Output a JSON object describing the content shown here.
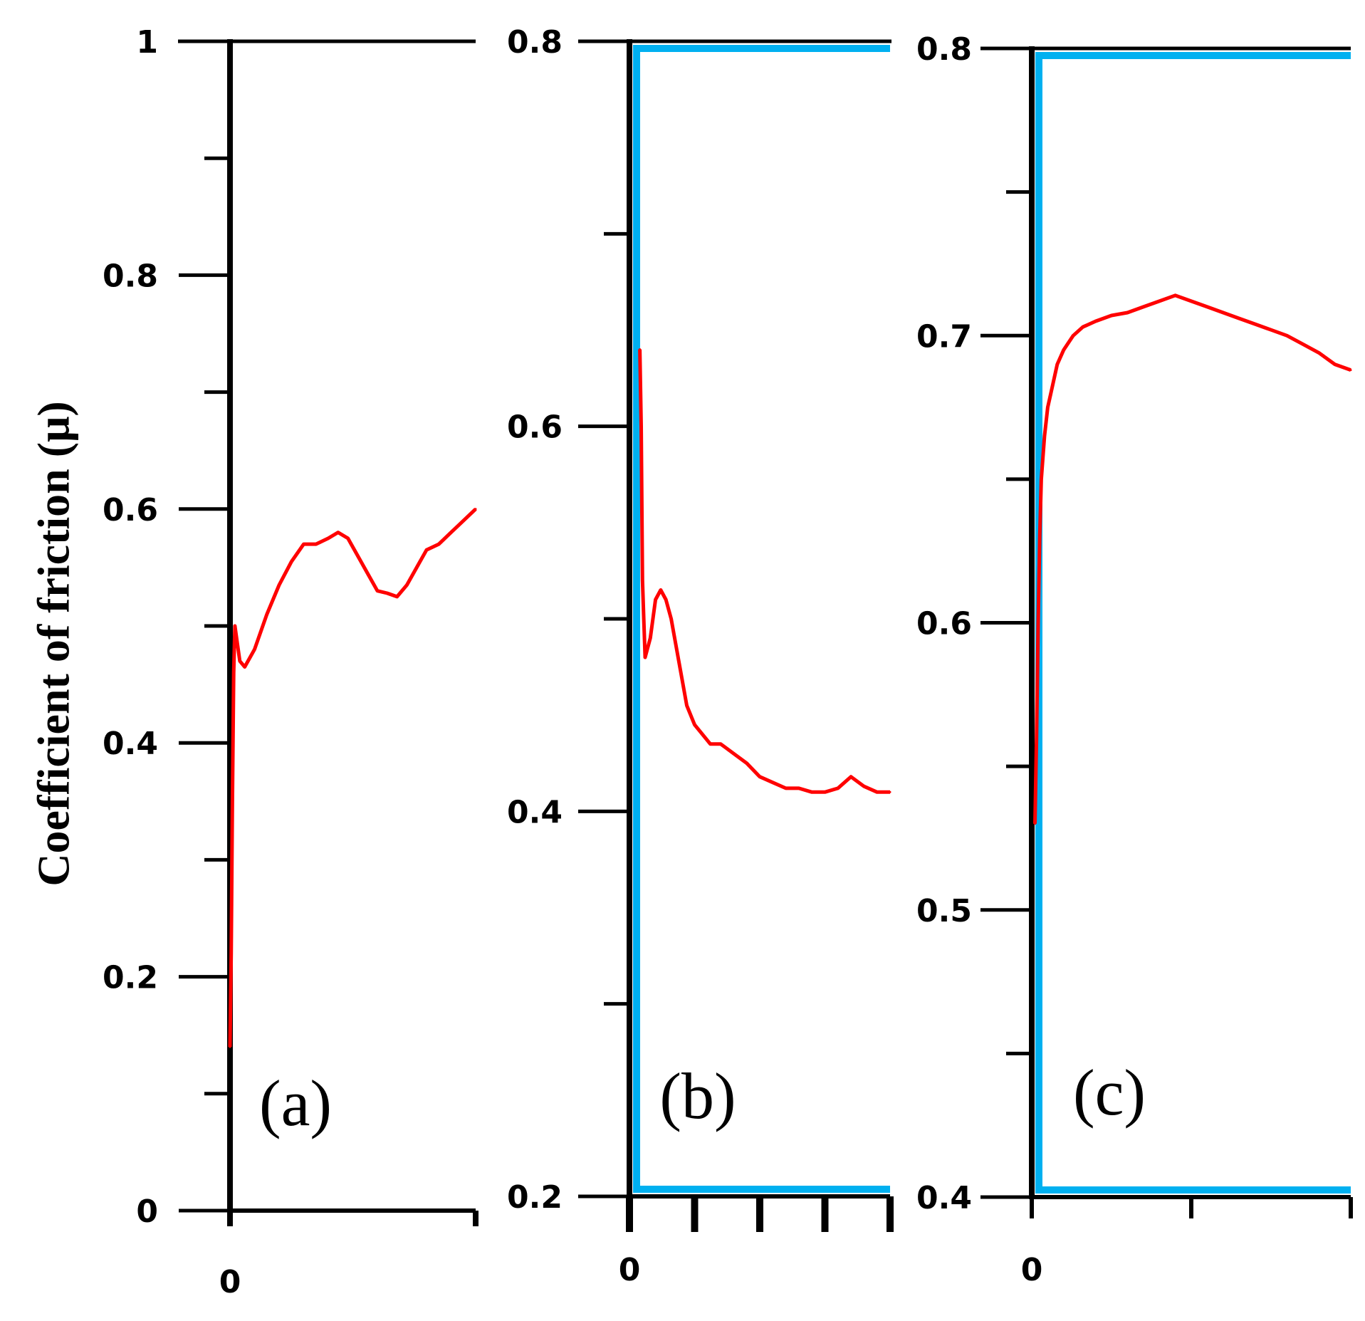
{
  "chart_data": {
    "type": "line",
    "ylabel": "Coefficient of friction (μ)",
    "colors": {
      "friction": "#ff0000",
      "frame_cyan": "#00b0f0",
      "axis": "#000000"
    },
    "panels": [
      {
        "label": "(a)",
        "ylim": [
          0,
          1
        ],
        "yticks": [
          0,
          0.2,
          0.4,
          0.6,
          0.8,
          1
        ],
        "ytick_labels": [
          "0",
          "0.2",
          "0.4",
          "0.6",
          "0.8",
          "1"
        ],
        "minor_yticks": [
          0.1,
          0.3,
          0.5,
          0.7,
          0.9
        ],
        "xlim": [
          0,
          1
        ],
        "x_ticks": [
          0,
          1
        ],
        "x_tick_label": "0",
        "frame_color": "black",
        "series": [
          {
            "name": "friction",
            "x": [
              0,
              0.005,
              0.01,
              0.015,
              0.02,
              0.04,
              0.06,
              0.1,
              0.15,
              0.2,
              0.25,
              0.3,
              0.35,
              0.4,
              0.44,
              0.48,
              0.52,
              0.56,
              0.6,
              0.64,
              0.68,
              0.72,
              0.76,
              0.8,
              0.85,
              0.9,
              0.95,
              1.0
            ],
            "y": [
              0.14,
              0.22,
              0.35,
              0.46,
              0.5,
              0.47,
              0.465,
              0.48,
              0.51,
              0.535,
              0.555,
              0.57,
              0.57,
              0.575,
              0.58,
              0.575,
              0.56,
              0.545,
              0.53,
              0.528,
              0.525,
              0.535,
              0.55,
              0.565,
              0.57,
              0.58,
              0.59,
              0.6
            ]
          }
        ]
      },
      {
        "label": "(b)",
        "ylim": [
          0.2,
          0.8
        ],
        "yticks": [
          0.2,
          0.4,
          0.6,
          0.8
        ],
        "ytick_labels": [
          "0.2",
          "0.4",
          "0.6",
          "0.8"
        ],
        "minor_yticks": [
          0.3,
          0.5,
          0.7
        ],
        "xlim": [
          0,
          1
        ],
        "x_ticks": [
          0,
          0.25,
          0.5,
          0.75,
          1
        ],
        "x_tick_label": "0",
        "frame_color": "cyan",
        "series": [
          {
            "name": "friction",
            "x": [
              0.04,
              0.045,
              0.05,
              0.055,
              0.06,
              0.08,
              0.1,
              0.12,
              0.14,
              0.16,
              0.18,
              0.2,
              0.22,
              0.25,
              0.28,
              0.31,
              0.35,
              0.4,
              0.45,
              0.5,
              0.55,
              0.6,
              0.65,
              0.7,
              0.75,
              0.8,
              0.85,
              0.9,
              0.95,
              1.0
            ],
            "y": [
              0.64,
              0.6,
              0.52,
              0.5,
              0.48,
              0.49,
              0.51,
              0.515,
              0.51,
              0.5,
              0.485,
              0.47,
              0.455,
              0.445,
              0.44,
              0.435,
              0.435,
              0.43,
              0.425,
              0.418,
              0.415,
              0.412,
              0.412,
              0.41,
              0.41,
              0.412,
              0.418,
              0.413,
              0.41,
              0.41
            ]
          }
        ]
      },
      {
        "label": "(c)",
        "ylim": [
          0.4,
          0.8
        ],
        "yticks": [
          0.4,
          0.5,
          0.6,
          0.7,
          0.8
        ],
        "ytick_labels": [
          "0.4",
          "0.5",
          "0.6",
          "0.7",
          "0.8"
        ],
        "minor_yticks": [
          0.45,
          0.55,
          0.65,
          0.75
        ],
        "xlim": [
          0,
          1
        ],
        "x_ticks": [
          0,
          0.5,
          1
        ],
        "x_tick_label": "0",
        "frame_color": "cyan",
        "series": [
          {
            "name": "friction",
            "x": [
              0.01,
              0.015,
              0.02,
              0.025,
              0.03,
              0.04,
              0.05,
              0.06,
              0.08,
              0.1,
              0.13,
              0.16,
              0.2,
              0.25,
              0.3,
              0.35,
              0.4,
              0.45,
              0.5,
              0.55,
              0.6,
              0.65,
              0.7,
              0.75,
              0.8,
              0.85,
              0.9,
              0.95,
              1.0
            ],
            "y": [
              0.53,
              0.56,
              0.6,
              0.63,
              0.65,
              0.665,
              0.675,
              0.68,
              0.69,
              0.695,
              0.7,
              0.703,
              0.705,
              0.707,
              0.708,
              0.71,
              0.712,
              0.714,
              0.712,
              0.71,
              0.708,
              0.706,
              0.704,
              0.702,
              0.7,
              0.697,
              0.694,
              0.69,
              0.688
            ]
          }
        ]
      }
    ]
  }
}
